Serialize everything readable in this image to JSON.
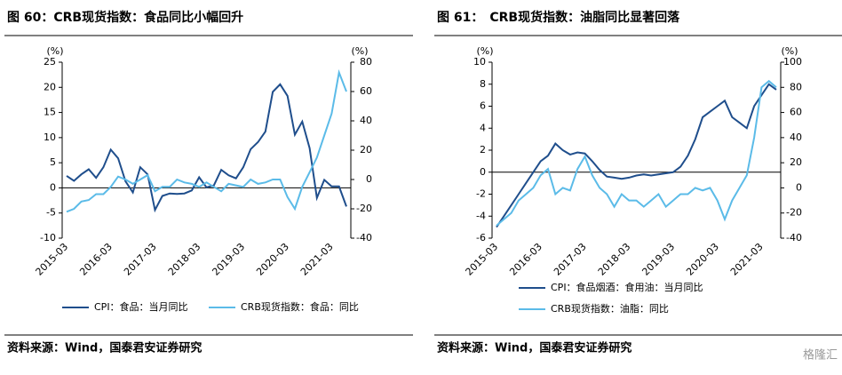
{
  "chart_data": [
    {
      "type": "line",
      "title": "图 60：CRB现货指数：食品同比小幅回升",
      "ylabel": "(%)",
      "y2label": "(%)",
      "source": "资料来源：Wind，国泰君安证券研究",
      "legend": "bottom",
      "categories": [
        "2015-03",
        null,
        null,
        null,
        null,
        null,
        "2016-03",
        null,
        null,
        null,
        null,
        null,
        "2017-03",
        null,
        null,
        null,
        null,
        null,
        "2018-03",
        null,
        null,
        null,
        null,
        null,
        "2019-03",
        null,
        null,
        null,
        null,
        null,
        "2020-03",
        null,
        null,
        null,
        null,
        null,
        "2021-03",
        null,
        null
      ],
      "ylim": [
        -10,
        25
      ],
      "yticks": [
        -10,
        -5,
        0,
        5,
        10,
        15,
        20,
        25
      ],
      "y2lim": [
        -40,
        80
      ],
      "y2ticks": [
        -40,
        -20,
        0,
        20,
        40,
        60,
        80
      ],
      "series": [
        {
          "name": "CPI：食品：当月同比",
          "color": "#1f4e8c",
          "values": [
            2.4,
            1.4,
            2.7,
            3.7,
            2.0,
            4.1,
            7.6,
            5.9,
            1.3,
            -0.9,
            4.1,
            2.7,
            -4.4,
            -1.6,
            -1.1,
            -1.2,
            -1.1,
            -0.5,
            2.1,
            0.1,
            0.5,
            3.6,
            2.5,
            1.9,
            4.1,
            7.7,
            9.1,
            11.2,
            19.1,
            20.6,
            18.3,
            10.6,
            13.2,
            7.9,
            -2.0,
            1.6,
            0.3,
            0.3,
            -3.7
          ]
        },
        {
          "name": "CRB现货指数：食品：同比",
          "color": "#5bbbe8",
          "axis": "y2",
          "values": [
            -22,
            -20,
            -15,
            -14,
            -10,
            -10,
            -5,
            2,
            0,
            -3,
            0,
            3,
            -8,
            -5,
            -5,
            0,
            -2,
            -3,
            -5,
            -2,
            -5,
            -8,
            -3,
            -4,
            -5,
            0,
            -3,
            -2,
            0,
            0,
            -12,
            -20,
            -5,
            5,
            15,
            30,
            45,
            73,
            60
          ]
        }
      ]
    },
    {
      "type": "line",
      "title": "图 61：　CRB现货指数：油脂同比显著回落",
      "ylabel": "(%)",
      "y2label": "(%)",
      "source": "资料来源：Wind，国泰君安证券研究",
      "legend": "bottom",
      "watermark": "格隆汇",
      "categories": [
        "2015-03",
        null,
        null,
        null,
        null,
        null,
        "2016-03",
        null,
        null,
        null,
        null,
        null,
        "2017-03",
        null,
        null,
        null,
        null,
        null,
        "2018-03",
        null,
        null,
        null,
        null,
        null,
        "2019-03",
        null,
        null,
        null,
        null,
        null,
        "2020-03",
        null,
        null,
        null,
        null,
        null,
        "2021-03",
        null,
        null
      ],
      "ylim": [
        -6,
        10
      ],
      "yticks": [
        -6,
        -4,
        -2,
        0,
        2,
        4,
        6,
        8,
        10
      ],
      "y2lim": [
        -40,
        100
      ],
      "y2ticks": [
        -40,
        -20,
        0,
        20,
        40,
        60,
        80,
        100
      ],
      "series": [
        {
          "name": "CPI：食品烟酒：食用油：当月同比",
          "color": "#1f4e8c",
          "values": [
            -5.0,
            -4.0,
            -3.0,
            -2.0,
            -1.0,
            0.0,
            1.0,
            1.5,
            2.6,
            2.0,
            1.6,
            1.8,
            1.7,
            1.0,
            0.2,
            -0.4,
            -0.5,
            -0.6,
            -0.5,
            -0.3,
            -0.2,
            -0.3,
            -0.2,
            -0.1,
            0.0,
            0.5,
            1.5,
            3.0,
            5.0,
            5.5,
            6.0,
            6.5,
            5.0,
            4.5,
            4.0,
            6.0,
            7.0,
            8.0,
            7.5
          ]
        },
        {
          "name": "CRB现货指数：油脂：同比",
          "color": "#5bbbe8",
          "axis": "y2",
          "values": [
            -30,
            -25,
            -20,
            -10,
            -5,
            0,
            10,
            15,
            -5,
            0,
            -2,
            15,
            25,
            10,
            0,
            -5,
            -15,
            -5,
            -10,
            -10,
            -15,
            -10,
            -5,
            -15,
            -10,
            -5,
            -5,
            0,
            -2,
            0,
            -10,
            -25,
            -10,
            0,
            10,
            40,
            80,
            85,
            80
          ]
        }
      ]
    }
  ]
}
